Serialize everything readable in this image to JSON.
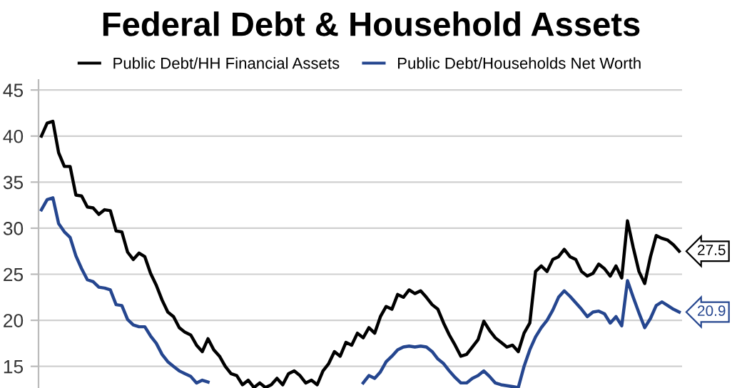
{
  "chart_data": {
    "type": "line",
    "title": "Federal Debt & Household Assets",
    "categories": [
      null,
      null,
      null,
      null,
      null,
      null,
      null,
      null,
      null,
      null,
      null,
      null,
      null,
      null,
      null,
      null,
      null,
      null,
      null,
      null,
      null,
      null,
      null,
      null,
      null,
      null,
      null,
      null,
      null,
      null,
      null,
      null,
      null,
      null,
      null,
      null,
      null,
      null,
      null,
      null,
      null,
      null,
      null,
      null,
      null,
      null,
      null,
      null,
      null,
      null,
      null,
      null,
      null,
      null,
      null,
      null,
      null,
      null,
      null,
      null,
      null,
      null,
      null,
      null,
      null,
      null,
      null,
      null,
      null,
      null,
      null,
      null,
      null,
      null,
      null,
      null,
      null,
      null,
      null,
      null,
      null,
      null,
      null,
      null,
      null,
      null,
      null,
      null,
      null,
      null,
      null,
      null,
      null,
      null,
      null,
      null,
      null,
      null,
      null,
      null,
      null,
      null,
      null,
      null,
      null,
      null,
      null,
      null,
      null,
      null,
      null,
      null
    ],
    "ylim": [
      12.65,
      46.1
    ],
    "yticks": [
      15,
      20,
      25,
      30,
      35,
      40,
      45
    ],
    "tick_labels": "y",
    "grid": "y",
    "legend": "top",
    "line_style": "solid",
    "marker": "none",
    "series": [
      {
        "name": "Public Debt/HH Financial Assets",
        "color": "#000000",
        "values": [
          40.0,
          41.4,
          41.6,
          38.2,
          36.7,
          36.7,
          33.6,
          33.5,
          32.3,
          32.2,
          31.5,
          32.0,
          31.9,
          29.7,
          29.6,
          27.4,
          26.6,
          27.3,
          26.9,
          25.1,
          23.8,
          22.2,
          20.9,
          20.4,
          19.2,
          18.7,
          18.4,
          17.3,
          16.6,
          18.0,
          16.8,
          16.1,
          15.0,
          14.2,
          14.0,
          13.0,
          13.5,
          12.7,
          13.2,
          12.7,
          13.0,
          13.7,
          13.0,
          14.2,
          14.5,
          14.0,
          13.2,
          13.5,
          13.0,
          14.5,
          15.3,
          16.6,
          16.1,
          17.6,
          17.3,
          18.6,
          18.1,
          19.2,
          18.6,
          20.4,
          21.5,
          21.2,
          22.8,
          22.5,
          23.3,
          22.9,
          23.2,
          22.5,
          21.7,
          21.2,
          19.7,
          18.4,
          17.3,
          16.1,
          16.3,
          17.1,
          17.9,
          19.9,
          18.9,
          18.1,
          17.6,
          17.1,
          17.3,
          16.6,
          18.6,
          19.7,
          25.3,
          25.9,
          25.3,
          26.6,
          26.9,
          27.7,
          26.9,
          26.6,
          25.3,
          24.8,
          25.1,
          26.1,
          25.6,
          24.8,
          25.9,
          24.6,
          30.8,
          27.9,
          25.3,
          24.0,
          26.9,
          29.2,
          28.9,
          28.7,
          28.2,
          27.5
        ],
        "value_labels": [
          null,
          null,
          null,
          null,
          null,
          null,
          null,
          null,
          null,
          null,
          null,
          null,
          null,
          null,
          null,
          null,
          null,
          null,
          null,
          null,
          null,
          null,
          null,
          null,
          null,
          null,
          null,
          null,
          null,
          null,
          null,
          null,
          null,
          null,
          null,
          null,
          null,
          null,
          null,
          null,
          null,
          null,
          null,
          null,
          null,
          null,
          null,
          null,
          null,
          null,
          null,
          null,
          null,
          null,
          null,
          null,
          null,
          null,
          null,
          null,
          null,
          null,
          null,
          null,
          null,
          null,
          null,
          null,
          null,
          null,
          null,
          null,
          null,
          null,
          null,
          null,
          null,
          null,
          null,
          null,
          null,
          null,
          null,
          null,
          null,
          null,
          null,
          null,
          null,
          null,
          null,
          null,
          null,
          null,
          null,
          null,
          null,
          null,
          null,
          null,
          null,
          null,
          null,
          null,
          null,
          null,
          null,
          null,
          null,
          null,
          null,
          "27.5"
        ]
      },
      {
        "name": "Public Debt/Households Net Worth",
        "color": "#25468f",
        "values": [
          32.0,
          33.1,
          33.3,
          30.5,
          29.6,
          29.0,
          27.0,
          25.6,
          24.4,
          24.2,
          23.6,
          23.5,
          23.3,
          21.7,
          21.6,
          20.1,
          19.5,
          19.3,
          19.3,
          18.3,
          17.5,
          16.3,
          15.5,
          15.0,
          14.5,
          14.2,
          13.9,
          13.2,
          13.5,
          13.3,
          null,
          null,
          null,
          null,
          null,
          null,
          null,
          null,
          null,
          null,
          null,
          null,
          null,
          null,
          null,
          null,
          null,
          null,
          null,
          null,
          null,
          null,
          null,
          null,
          null,
          null,
          13.2,
          14.0,
          13.7,
          14.4,
          15.5,
          16.1,
          16.8,
          17.1,
          17.2,
          17.1,
          17.2,
          17.1,
          16.6,
          15.8,
          15.3,
          14.5,
          13.8,
          13.2,
          13.2,
          13.7,
          14.0,
          14.5,
          13.9,
          13.2,
          13.0,
          12.9,
          12.8,
          12.7,
          15.0,
          16.8,
          18.2,
          19.2,
          20.0,
          21.1,
          22.5,
          23.2,
          22.6,
          21.9,
          21.2,
          20.4,
          20.9,
          21.0,
          20.7,
          19.7,
          20.4,
          19.4,
          24.3,
          22.5,
          20.8,
          19.2,
          20.2,
          21.6,
          22.0,
          21.6,
          21.2,
          20.9
        ],
        "value_labels": [
          null,
          null,
          null,
          null,
          null,
          null,
          null,
          null,
          null,
          null,
          null,
          null,
          null,
          null,
          null,
          null,
          null,
          null,
          null,
          null,
          null,
          null,
          null,
          null,
          null,
          null,
          null,
          null,
          null,
          null,
          null,
          null,
          null,
          null,
          null,
          null,
          null,
          null,
          null,
          null,
          null,
          null,
          null,
          null,
          null,
          null,
          null,
          null,
          null,
          null,
          null,
          null,
          null,
          null,
          null,
          null,
          null,
          null,
          null,
          null,
          null,
          null,
          null,
          null,
          null,
          null,
          null,
          null,
          null,
          null,
          null,
          null,
          null,
          null,
          null,
          null,
          null,
          null,
          null,
          null,
          null,
          null,
          null,
          null,
          null,
          null,
          null,
          null,
          null,
          null,
          null,
          null,
          null,
          null,
          null,
          null,
          null,
          null,
          null,
          null,
          null,
          null,
          null,
          null,
          null,
          null,
          null,
          null,
          null,
          null,
          null,
          "20.9"
        ]
      }
    ]
  }
}
